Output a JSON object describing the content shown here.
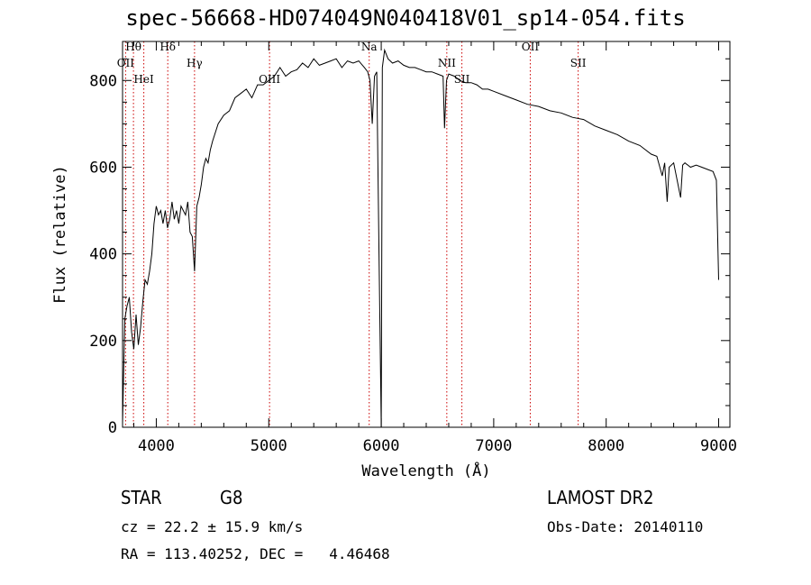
{
  "chart_data": {
    "type": "line",
    "title": "spec-56668-HD074049N040418V01_sp14-054.fits",
    "xlabel": "Wavelength (Å)",
    "ylabel": "Flux (relative)",
    "xlim": [
      3700,
      9100
    ],
    "ylim": [
      0,
      890
    ],
    "xticks": [
      4000,
      5000,
      6000,
      7000,
      8000,
      9000
    ],
    "yticks": [
      0,
      200,
      400,
      600,
      800
    ],
    "line_color": "#000000",
    "marker_color": "#cc0000",
    "grid": false,
    "spectrum": [
      [
        3700,
        10
      ],
      [
        3720,
        250
      ],
      [
        3740,
        280
      ],
      [
        3760,
        300
      ],
      [
        3780,
        220
      ],
      [
        3800,
        180
      ],
      [
        3820,
        260
      ],
      [
        3840,
        190
      ],
      [
        3860,
        230
      ],
      [
        3880,
        290
      ],
      [
        3900,
        340
      ],
      [
        3920,
        330
      ],
      [
        3940,
        360
      ],
      [
        3960,
        400
      ],
      [
        3980,
        470
      ],
      [
        4000,
        510
      ],
      [
        4020,
        490
      ],
      [
        4040,
        500
      ],
      [
        4060,
        470
      ],
      [
        4080,
        500
      ],
      [
        4100,
        460
      ],
      [
        4120,
        480
      ],
      [
        4140,
        520
      ],
      [
        4160,
        480
      ],
      [
        4180,
        500
      ],
      [
        4200,
        470
      ],
      [
        4220,
        510
      ],
      [
        4240,
        500
      ],
      [
        4260,
        490
      ],
      [
        4280,
        520
      ],
      [
        4300,
        450
      ],
      [
        4320,
        440
      ],
      [
        4340,
        360
      ],
      [
        4360,
        510
      ],
      [
        4380,
        530
      ],
      [
        4400,
        560
      ],
      [
        4420,
        600
      ],
      [
        4440,
        620
      ],
      [
        4460,
        610
      ],
      [
        4480,
        640
      ],
      [
        4500,
        660
      ],
      [
        4550,
        700
      ],
      [
        4600,
        720
      ],
      [
        4650,
        730
      ],
      [
        4700,
        760
      ],
      [
        4750,
        770
      ],
      [
        4800,
        780
      ],
      [
        4850,
        760
      ],
      [
        4900,
        790
      ],
      [
        4950,
        790
      ],
      [
        5000,
        800
      ],
      [
        5050,
        810
      ],
      [
        5100,
        830
      ],
      [
        5150,
        810
      ],
      [
        5200,
        820
      ],
      [
        5250,
        825
      ],
      [
        5300,
        840
      ],
      [
        5350,
        830
      ],
      [
        5400,
        850
      ],
      [
        5450,
        835
      ],
      [
        5500,
        840
      ],
      [
        5550,
        845
      ],
      [
        5600,
        850
      ],
      [
        5650,
        830
      ],
      [
        5700,
        845
      ],
      [
        5750,
        840
      ],
      [
        5800,
        845
      ],
      [
        5850,
        830
      ],
      [
        5880,
        820
      ],
      [
        5900,
        800
      ],
      [
        5920,
        700
      ],
      [
        5940,
        810
      ],
      [
        5960,
        820
      ],
      [
        5980,
        400
      ],
      [
        6000,
        0
      ],
      [
        6010,
        830
      ],
      [
        6030,
        870
      ],
      [
        6060,
        850
      ],
      [
        6100,
        840
      ],
      [
        6150,
        845
      ],
      [
        6200,
        835
      ],
      [
        6250,
        830
      ],
      [
        6300,
        830
      ],
      [
        6350,
        825
      ],
      [
        6400,
        820
      ],
      [
        6450,
        820
      ],
      [
        6500,
        815
      ],
      [
        6550,
        810
      ],
      [
        6563,
        690
      ],
      [
        6580,
        800
      ],
      [
        6600,
        815
      ],
      [
        6650,
        810
      ],
      [
        6700,
        800
      ],
      [
        6750,
        795
      ],
      [
        6800,
        795
      ],
      [
        6850,
        790
      ],
      [
        6900,
        780
      ],
      [
        6950,
        780
      ],
      [
        7000,
        775
      ],
      [
        7100,
        765
      ],
      [
        7200,
        755
      ],
      [
        7300,
        745
      ],
      [
        7400,
        740
      ],
      [
        7500,
        730
      ],
      [
        7600,
        725
      ],
      [
        7700,
        715
      ],
      [
        7800,
        710
      ],
      [
        7900,
        695
      ],
      [
        8000,
        685
      ],
      [
        8100,
        675
      ],
      [
        8200,
        660
      ],
      [
        8300,
        650
      ],
      [
        8400,
        630
      ],
      [
        8450,
        625
      ],
      [
        8498,
        580
      ],
      [
        8520,
        610
      ],
      [
        8542,
        520
      ],
      [
        8560,
        600
      ],
      [
        8600,
        610
      ],
      [
        8662,
        530
      ],
      [
        8680,
        605
      ],
      [
        8700,
        610
      ],
      [
        8750,
        600
      ],
      [
        8800,
        605
      ],
      [
        8850,
        600
      ],
      [
        8900,
        595
      ],
      [
        8950,
        590
      ],
      [
        8980,
        570
      ],
      [
        9000,
        340
      ]
    ],
    "lines": [
      {
        "label": "Hθ",
        "x": 3797
      },
      {
        "label": "OII",
        "x": 3727
      },
      {
        "label": "HeI",
        "x": 3889
      },
      {
        "label": "Hδ",
        "x": 4102
      },
      {
        "label": "Hγ",
        "x": 4340
      },
      {
        "label": "OIII",
        "x": 5007
      },
      {
        "label": "Na",
        "x": 5893
      },
      {
        "label": "NII",
        "x": 6583
      },
      {
        "label": "SII",
        "x": 6717
      },
      {
        "label": "OII",
        "x": 7325
      },
      {
        "label": "SII",
        "x": 7751
      }
    ]
  },
  "info": {
    "object_class": "STAR",
    "subclass": "G8",
    "survey": "LAMOST DR2",
    "cz": "cz = 22.2 ± 15.9 km/s",
    "obs_date": "Obs-Date: 20140110",
    "coords": "RA = 113.40252, DEC =   4.46468"
  }
}
